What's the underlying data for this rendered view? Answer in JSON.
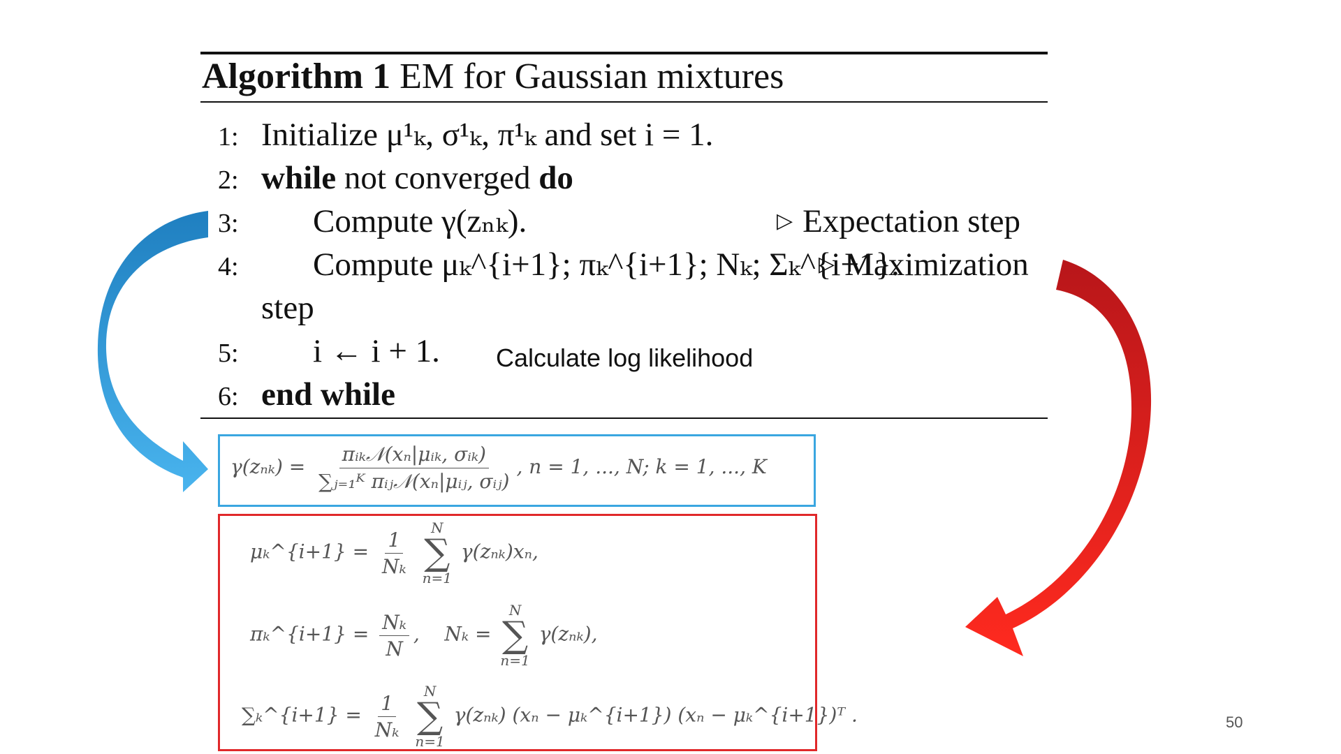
{
  "algorithm": {
    "label": "Algorithm 1",
    "title": "EM for Gaussian mixtures",
    "lines": [
      {
        "num": "1:",
        "text": "Initialize μ¹ₖ, σ¹ₖ, π¹ₖ and set i = 1."
      },
      {
        "num": "2:",
        "kw1": "while",
        "text": " not converged ",
        "kw2": "do"
      },
      {
        "num": "3:",
        "text": "Compute γ(zₙₖ).",
        "comment": "Expectation step"
      },
      {
        "num": "4:",
        "text": "Compute μₖ^{i+1}; πₖ^{i+1}; Nₖ; Σₖ^{i+1}.",
        "comment": "Maximization",
        "continuation": "step"
      },
      {
        "num": "5:",
        "text": "i ← i + 1."
      },
      {
        "num": "6:",
        "kw1": "end while"
      }
    ]
  },
  "annotation": "Calculate log likelihood",
  "expectation_equation": {
    "lhs": "γ(zₙₖ) =",
    "numerator": "πᵢₖ𝒩(xₙ|μᵢₖ, σᵢₖ)",
    "denominator": "∑ⱼ₌₁ᴷ πᵢⱼ𝒩(xₙ|μᵢⱼ, σᵢⱼ)",
    "tail": ", n = 1, ..., N; k = 1, ..., K"
  },
  "maximization_equations": {
    "mu": {
      "lhs": "μₖ^{i+1} =",
      "frac_num": "1",
      "frac_den": "Nₖ",
      "sum_top": "N",
      "sum_bot": "n=1",
      "body": "γ(zₙₖ)xₙ,"
    },
    "pi": {
      "lhs": "πₖ^{i+1} =",
      "frac_num": "Nₖ",
      "frac_den": "N",
      "mid": ",    Nₖ =",
      "sum_top": "N",
      "sum_bot": "n=1",
      "body": "γ(zₙₖ),"
    },
    "sigma": {
      "lhs": "∑ₖ^{i+1} =",
      "frac_num": "1",
      "frac_den": "Nₖ",
      "sum_top": "N",
      "sum_bot": "n=1",
      "body": "γ(zₙₖ) (xₙ − μₖ^{i+1}) (xₙ − μₖ^{i+1})ᵀ ."
    }
  },
  "colors": {
    "expectation": "#3aa6e0",
    "maximization": "#e0282a"
  },
  "page_number": "50"
}
